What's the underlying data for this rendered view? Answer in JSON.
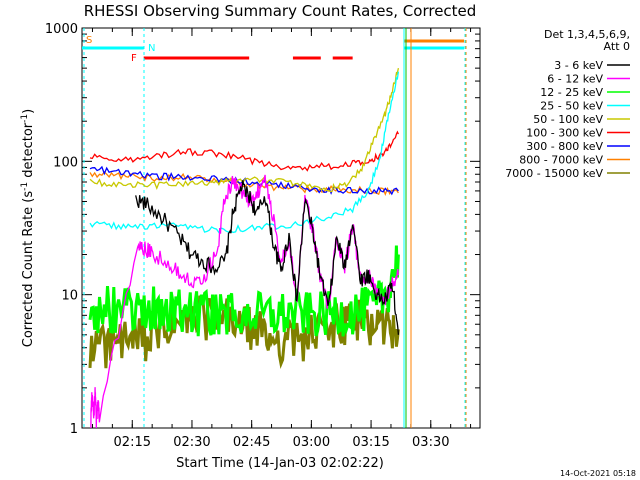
{
  "chart_data": {
    "type": "line",
    "title": "RHESSI Observing Summary Count Rates, Corrected",
    "xlabel": "Start Time (14-Jan-03 02:02:22)",
    "ylabel_parts": {
      "main": "Corrected Count Rate (s",
      "sup1": "-1",
      "mid": " detector",
      "sup2": "-1",
      "end": ")"
    },
    "x_ticks": [
      "02:15",
      "02:30",
      "02:45",
      "03:00",
      "03:15",
      "03:30"
    ],
    "y_ticks": [
      "1",
      "10",
      "100",
      "1000"
    ],
    "y_scale": "log",
    "ylim": [
      1,
      1000
    ],
    "xlim_minutes": [
      0,
      100
    ],
    "x_tick_minutes": [
      12.63,
      27.63,
      42.63,
      57.63,
      72.63,
      87.63
    ],
    "timestamp": "14-Oct-2021 05:18",
    "legend_header": [
      "Det 1,3,4,5,6,9,",
      "Att 0"
    ],
    "flags": [
      {
        "label": "S",
        "color": "#ff8000"
      },
      {
        "label": "N",
        "color": "#00ffff"
      },
      {
        "label": "F",
        "color": "#ff0000"
      }
    ],
    "series": [
      {
        "name": "3 - 6 keV",
        "color": "#000000",
        "x": [
          13.5,
          16,
          20,
          24,
          27,
          30,
          33,
          36,
          38,
          40,
          42,
          44,
          46,
          48,
          50,
          52,
          54,
          56,
          58,
          60,
          62,
          64,
          66,
          68,
          70,
          72,
          74,
          76,
          78,
          79.5
        ],
        "y": [
          52,
          48,
          38,
          28,
          21,
          18,
          16,
          18,
          42,
          65,
          55,
          40,
          56,
          25,
          15,
          28,
          9,
          52,
          30,
          13,
          8,
          27,
          16,
          36,
          13,
          14,
          10,
          9,
          12,
          5
        ]
      },
      {
        "name": "6 - 12 keV",
        "color": "#ff00ff",
        "x": [
          2.2,
          2.5,
          3,
          3.3,
          3.6,
          4,
          4.4,
          14,
          16,
          18,
          22,
          25,
          28,
          31,
          34,
          36,
          38,
          40,
          42,
          44,
          46,
          48,
          50,
          52,
          54,
          56,
          58,
          60,
          62,
          64,
          66,
          68,
          70,
          72,
          74,
          76,
          78,
          79.5
        ],
        "y": [
          1.1,
          1.8,
          1.2,
          2,
          1.1,
          1.6,
          1.2,
          24,
          22,
          20,
          17,
          14,
          13,
          14,
          22,
          55,
          72,
          60,
          50,
          58,
          74,
          38,
          18,
          26,
          9,
          52,
          30,
          13,
          8,
          27,
          16,
          33,
          13,
          14,
          10,
          9,
          12,
          14
        ]
      },
      {
        "name": "12 - 25 keV",
        "color": "#00ff00",
        "x": [
          2,
          6,
          10,
          14,
          18,
          22,
          26,
          30,
          34,
          38,
          42,
          46,
          50,
          54,
          58,
          62,
          66,
          70,
          74,
          77,
          79.5
        ],
        "y": [
          7.5,
          7.8,
          7.6,
          7.4,
          7.7,
          7.5,
          7.3,
          7.2,
          7.3,
          7.1,
          7.2,
          7,
          7.1,
          7.2,
          7,
          7.1,
          7.3,
          7.5,
          8.2,
          11,
          20
        ]
      },
      {
        "name": "25 - 50 keV",
        "color": "#00ffff",
        "x": [
          2,
          8,
          14,
          20,
          26,
          32,
          38,
          44,
          50,
          56,
          62,
          68,
          72,
          75,
          77,
          79.5
        ],
        "y": [
          34,
          33,
          32,
          33,
          32,
          31,
          31,
          32,
          33,
          35,
          38,
          44,
          60,
          110,
          220,
          470
        ]
      },
      {
        "name": "50 - 100 keV",
        "color": "#c8c800",
        "x": [
          2,
          8,
          14,
          20,
          26,
          32,
          38,
          44,
          50,
          56,
          62,
          66,
          70,
          73,
          76,
          78,
          79.5
        ],
        "y": [
          70,
          68,
          66,
          66,
          68,
          70,
          72,
          74,
          70,
          66,
          62,
          66,
          85,
          140,
          220,
          340,
          500
        ]
      },
      {
        "name": "100 - 300 keV",
        "color": "#ff0000",
        "x": [
          2,
          8,
          14,
          20,
          26,
          32,
          38,
          44,
          50,
          56,
          62,
          68,
          72,
          75,
          77,
          79.5
        ],
        "y": [
          110,
          104,
          102,
          110,
          118,
          116,
          110,
          98,
          92,
          90,
          92,
          96,
          102,
          110,
          130,
          160
        ]
      },
      {
        "name": "300 - 800 keV",
        "color": "#0000ff",
        "x": [
          2,
          8,
          14,
          20,
          26,
          32,
          38,
          44,
          50,
          56,
          62,
          68,
          74,
          79.5
        ],
        "y": [
          88,
          84,
          80,
          77,
          76,
          74,
          72,
          70,
          67,
          63,
          61,
          60,
          60,
          60
        ]
      },
      {
        "name": "800 - 7000 keV",
        "color": "#ff8000",
        "x": [
          2,
          8,
          14,
          20,
          26,
          32,
          38,
          44,
          50,
          56,
          62,
          68,
          74,
          79.5
        ],
        "y": [
          80,
          78,
          76,
          75,
          76,
          74,
          70,
          66,
          63,
          62,
          62,
          61,
          60,
          58
        ]
      },
      {
        "name": "7000 - 15000 keV",
        "color": "#808000",
        "x": [
          2,
          6,
          10,
          14,
          18,
          22,
          26,
          30,
          34,
          38,
          42,
          46,
          50,
          54,
          58,
          62,
          66,
          70,
          74,
          77,
          79.5
        ],
        "y": [
          4,
          4.2,
          4.4,
          4.5,
          5,
          5.5,
          6.3,
          6.8,
          6.6,
          6.4,
          5.5,
          5,
          4.5,
          4.5,
          5,
          5.5,
          6,
          6.2,
          6,
          5.8,
          5.5
        ]
      }
    ]
  }
}
